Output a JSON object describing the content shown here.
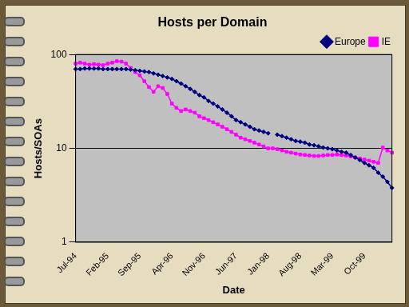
{
  "chart_data": {
    "type": "line",
    "title": "Hosts per Domain",
    "x_label": "Date",
    "y_label": "Hosts/SOAs",
    "categories": [
      "Jul-94",
      null,
      null,
      null,
      null,
      null,
      null,
      "Feb-95",
      null,
      null,
      null,
      null,
      null,
      null,
      "Sep-95",
      null,
      null,
      null,
      null,
      null,
      null,
      "Apr-96",
      null,
      null,
      null,
      null,
      null,
      null,
      "Nov-96",
      null,
      null,
      null,
      null,
      null,
      null,
      "Jun-97",
      null,
      null,
      null,
      null,
      null,
      null,
      "Jan-98",
      null,
      null,
      null,
      null,
      null,
      null,
      "Aug-98",
      null,
      null,
      null,
      null,
      null,
      null,
      "Mar-99",
      null,
      null,
      null,
      null,
      null,
      null,
      "Oct-99",
      null,
      null,
      null,
      null,
      null,
      null
    ],
    "series": [
      {
        "name": "Europe",
        "color": "#000080",
        "marker": "diamond",
        "line_style": "solid",
        "values": [
          70,
          70,
          71,
          71,
          71,
          71,
          70,
          70,
          70,
          70,
          70,
          70,
          69,
          68,
          67,
          66,
          65,
          63,
          61,
          59,
          57,
          55,
          52,
          49,
          46,
          43,
          40,
          37,
          35,
          32,
          30,
          28,
          26,
          24,
          22,
          20,
          19,
          18,
          17,
          16,
          15.5,
          15,
          14.5,
          null,
          14,
          13.5,
          13,
          12.5,
          12,
          11.8,
          11.5,
          11,
          10.8,
          10.5,
          10.2,
          10,
          9.8,
          9.5,
          9.2,
          9,
          8.5,
          8,
          7.5,
          7,
          6.6,
          6.2,
          5.5,
          5,
          4.4,
          3.8
        ]
      },
      {
        "name": "IE",
        "color": "#ff00ff",
        "marker": "square",
        "line_style": "solid",
        "values": [
          80,
          82,
          80,
          78,
          79,
          78,
          77,
          80,
          82,
          85,
          84,
          80,
          72,
          65,
          60,
          52,
          45,
          40,
          46,
          44,
          38,
          30,
          27,
          25,
          26,
          25,
          24,
          22,
          21,
          20,
          19,
          18,
          17,
          16,
          15,
          14,
          13,
          12.5,
          12,
          11.5,
          11,
          10.5,
          10,
          10,
          9.8,
          9.5,
          9.2,
          9,
          8.8,
          8.6,
          8.5,
          8.4,
          8.3,
          8.3,
          8.4,
          8.5,
          8.5,
          8.6,
          8.5,
          8.4,
          8.2,
          8,
          7.8,
          7.6,
          7.4,
          7.2,
          7,
          10.2,
          9.5,
          9
        ]
      }
    ],
    "log": "y",
    "ylim": [
      1,
      100
    ],
    "yticks": [
      1,
      10,
      100
    ],
    "grid": true,
    "legend": "upper right"
  }
}
